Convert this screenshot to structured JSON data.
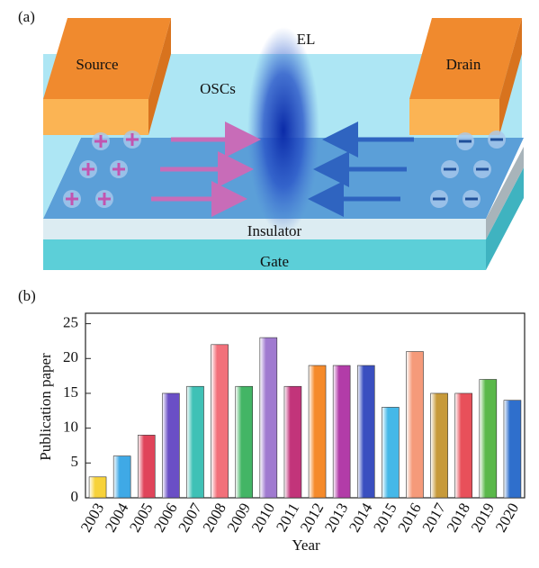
{
  "diagram": {
    "panel_label": "(a)",
    "el": "EL",
    "oscs": "OSCs",
    "source": "Source",
    "drain": "Drain",
    "insulator": "Insulator",
    "gate": "Gate"
  },
  "chart_data": {
    "type": "bar",
    "panel_label": "(b)",
    "x_label": "Year",
    "y_label": "Publication paper",
    "categories": [
      "2003",
      "2004",
      "2005",
      "2006",
      "2007",
      "2008",
      "2009",
      "2010",
      "2011",
      "2012",
      "2013",
      "2014",
      "2015",
      "2016",
      "2017",
      "2018",
      "2019",
      "2020"
    ],
    "values": [
      3,
      6,
      9,
      15,
      16,
      22,
      16,
      23,
      16,
      19,
      19,
      19,
      13,
      21,
      15,
      15,
      17,
      14
    ],
    "colors": [
      "#f7d23a",
      "#3fa9e6",
      "#e0445a",
      "#6a4fc6",
      "#3fc1b6",
      "#f2707a",
      "#43b565",
      "#a07ad0",
      "#c2347a",
      "#f58a2a",
      "#b23ca8",
      "#3a4fc0",
      "#45b8e8",
      "#f59a7a",
      "#c79a3a",
      "#e8505a",
      "#5ab84a",
      "#2f6fcc"
    ],
    "ylim": [
      0,
      26.5
    ],
    "yticks": [
      0,
      5,
      10,
      15,
      20,
      25
    ]
  }
}
